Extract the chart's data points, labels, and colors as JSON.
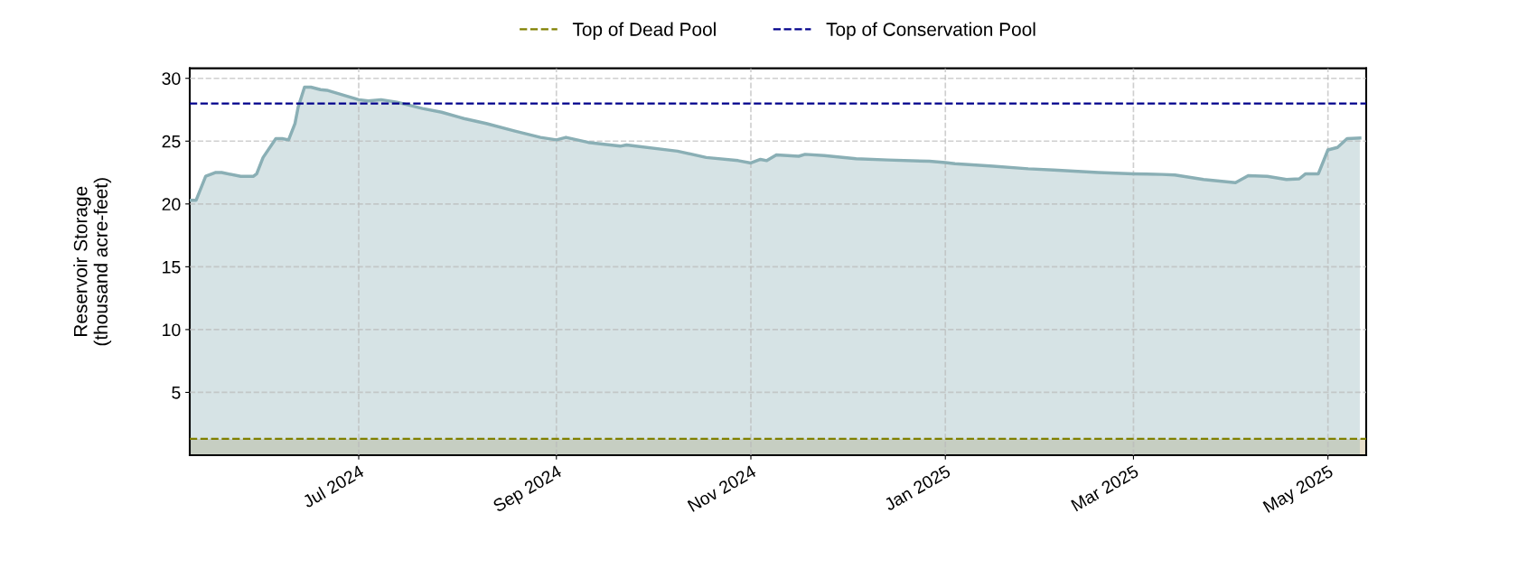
{
  "chart_data": {
    "type": "area",
    "ylabel": "Reservoir Storage\n(thousand acre-feet)",
    "series": [
      {
        "color": "#8aafb5",
        "x": [
          "2024-05-09",
          "2024-05-11",
          "2024-05-14",
          "2024-05-17",
          "2024-05-19",
          "2024-05-25",
          "2024-05-29",
          "2024-05-30",
          "2024-06-01",
          "2024-06-05",
          "2024-06-07",
          "2024-06-09",
          "2024-06-11",
          "2024-06-12",
          "2024-06-14",
          "2024-06-16",
          "2024-06-19",
          "2024-06-21",
          "2024-07-01",
          "2024-07-04",
          "2024-07-08",
          "2024-07-13",
          "2024-07-21",
          "2024-07-27",
          "2024-08-03",
          "2024-08-10",
          "2024-08-19",
          "2024-08-27",
          "2024-09-01",
          "2024-09-04",
          "2024-09-11",
          "2024-09-21",
          "2024-09-23",
          "2024-10-09",
          "2024-10-18",
          "2024-10-28",
          "2024-11-01",
          "2024-11-04",
          "2024-11-06",
          "2024-11-09",
          "2024-11-16",
          "2024-11-18",
          "2024-11-24",
          "2024-12-04",
          "2024-12-14",
          "2024-12-27",
          "2025-01-01",
          "2025-01-04",
          "2025-01-16",
          "2025-01-27",
          "2025-02-04",
          "2025-02-18",
          "2025-03-01",
          "2025-03-10",
          "2025-03-14",
          "2025-03-23",
          "2025-04-02",
          "2025-04-06",
          "2025-04-12",
          "2025-04-18",
          "2025-04-22",
          "2025-04-24",
          "2025-04-28",
          "2025-05-01",
          "2025-05-04",
          "2025-05-07",
          "2025-05-11"
        ],
        "values": [
          20.3,
          20.3,
          22.2,
          22.5,
          22.5,
          22.2,
          22.2,
          22.4,
          23.7,
          25.2,
          25.2,
          25.1,
          26.4,
          27.7,
          29.3,
          29.3,
          29.1,
          29.05,
          28.3,
          28.2,
          28.3,
          28.1,
          27.6,
          27.3,
          26.8,
          26.4,
          25.8,
          25.3,
          25.1,
          25.3,
          24.9,
          24.6,
          24.7,
          24.2,
          23.7,
          23.45,
          23.26,
          23.55,
          23.45,
          23.9,
          23.8,
          23.95,
          23.85,
          23.6,
          23.5,
          23.4,
          23.3,
          23.2,
          23.0,
          22.8,
          22.7,
          22.5,
          22.4,
          22.35,
          22.3,
          21.95,
          21.7,
          22.25,
          22.2,
          21.95,
          22.0,
          22.4,
          22.4,
          24.3,
          24.5,
          25.2,
          25.25
        ]
      }
    ],
    "xlim": [
      "2024-05-09",
      "2025-05-13"
    ],
    "xticks": [
      {
        "value": "2024-07-01",
        "label": "Jul 2024"
      },
      {
        "value": "2024-09-01",
        "label": "Sep 2024"
      },
      {
        "value": "2024-11-01",
        "label": "Nov 2024"
      },
      {
        "value": "2025-01-01",
        "label": "Jan 2025"
      },
      {
        "value": "2025-03-01",
        "label": "Mar 2025"
      },
      {
        "value": "2025-05-01",
        "label": "May 2025"
      }
    ],
    "ylim": [
      0,
      30.8
    ],
    "yticks": [
      5,
      10,
      15,
      20,
      25,
      30
    ],
    "bands": [
      {
        "axis": "y",
        "from": 0,
        "to": 1.3,
        "color": "#e6dfca"
      }
    ],
    "ref_lines": [
      {
        "axis": "y",
        "value": 1.3,
        "label": "Top of Dead Pool",
        "color": "#808000",
        "line_style": "dashed"
      },
      {
        "axis": "y",
        "value": 28.0,
        "label": "Top of Conservation Pool",
        "color": "#00008b",
        "line_style": "dashed"
      }
    ],
    "grid": true,
    "legend": "top"
  }
}
